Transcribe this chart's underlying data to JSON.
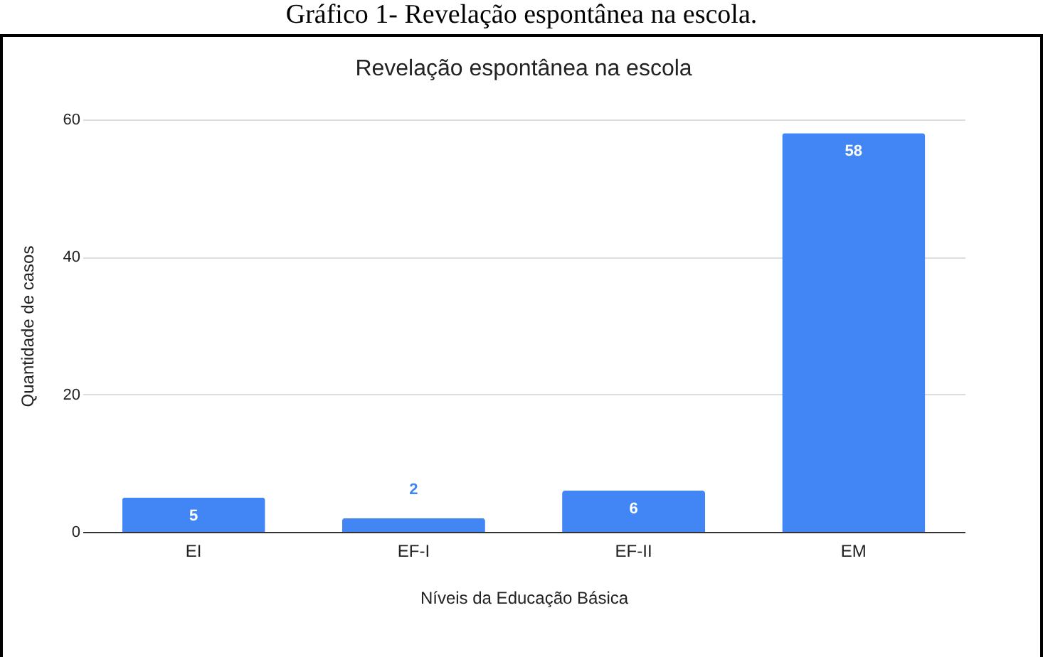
{
  "chart_data": {
    "type": "bar",
    "title": "Revelação espontânea na escola",
    "xlabel": "Níveis da Educação Básica",
    "ylabel": "Quantidade de casos",
    "categories": [
      "EI",
      "EF-I",
      "EF-II",
      "EM"
    ],
    "values": [
      5,
      2,
      6,
      58
    ],
    "color": "#4285f4",
    "ylim": [
      0,
      60
    ],
    "yticks": [
      0,
      20,
      40,
      60
    ],
    "grid": "y",
    "data_labels": true,
    "annotations": [
      "Gráfico 1- Revelação espontânea na escola."
    ]
  }
}
